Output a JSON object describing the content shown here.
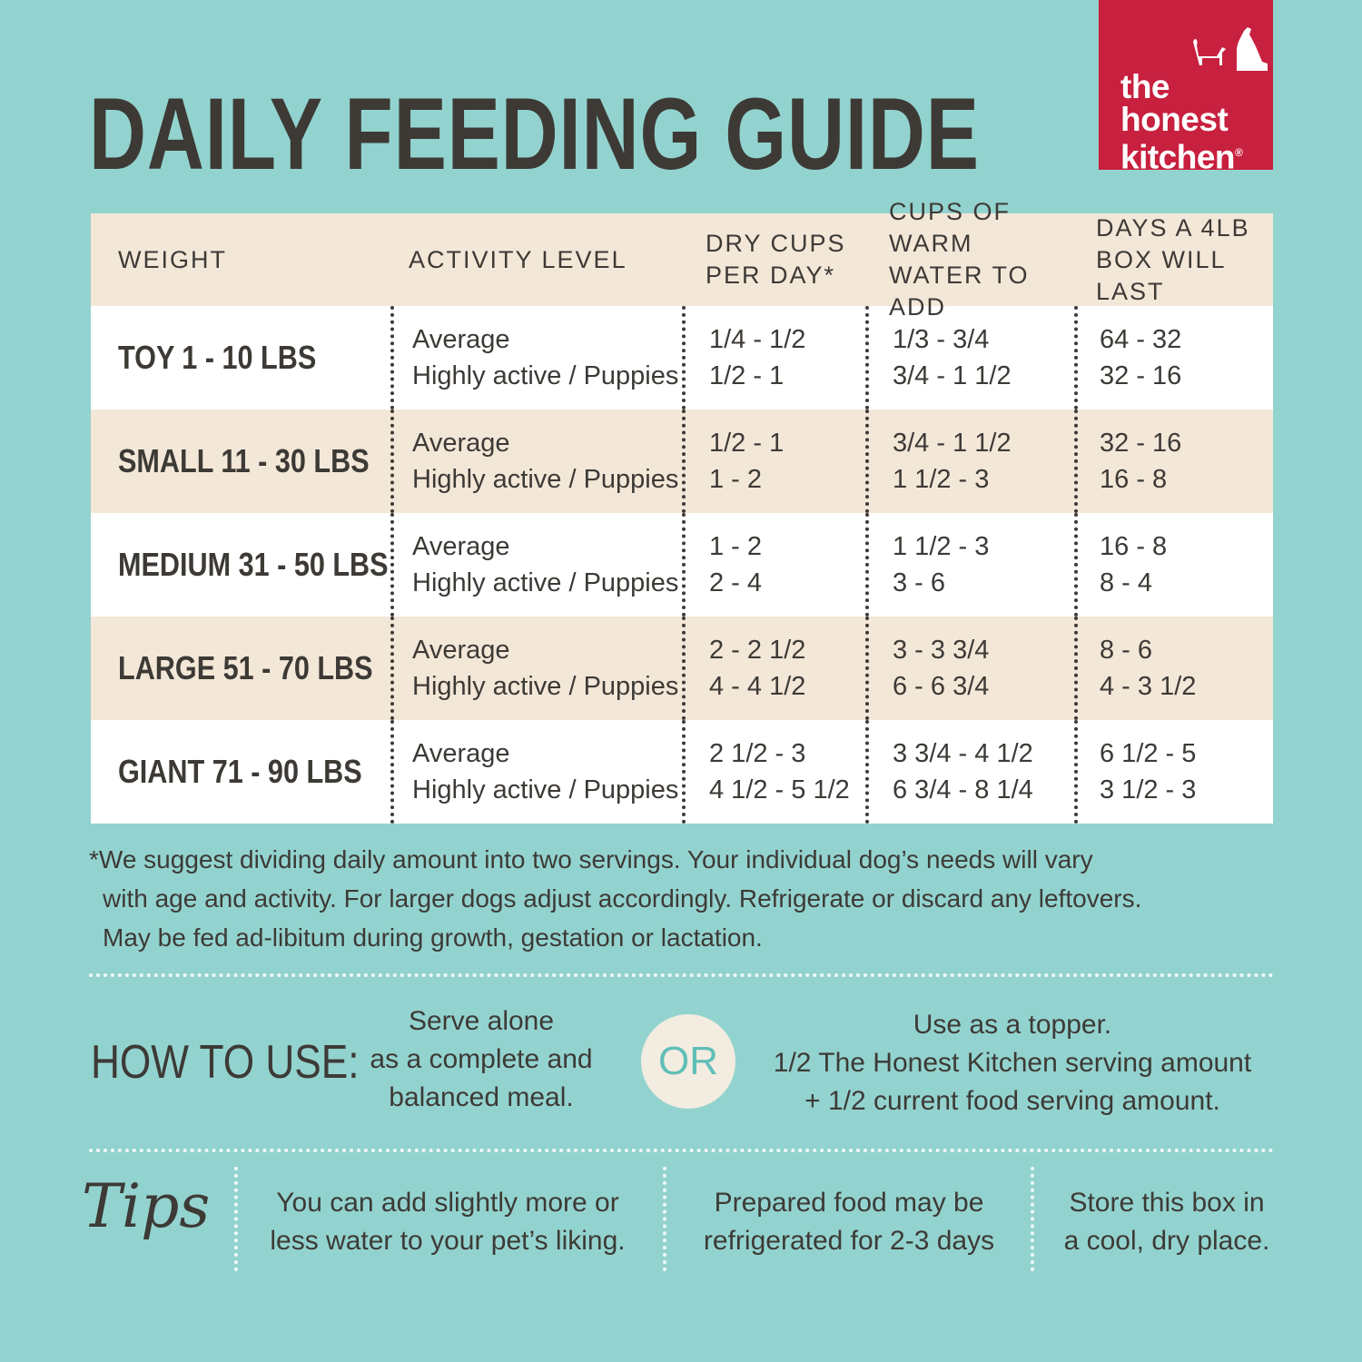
{
  "title": "DAILY FEEDING GUIDE",
  "logo": {
    "line1": "the",
    "line2": "honest",
    "line3": "kitchen",
    "mark": "®"
  },
  "colors": {
    "background": "#93d3cf",
    "cream": "#f3e7d8",
    "text": "#3d3a36",
    "brand_red": "#c8203f"
  },
  "table": {
    "headers": [
      "WEIGHT",
      "ACTIVITY LEVEL",
      "DRY CUPS PER DAY*",
      "CUPS OF WARM WATER TO ADD",
      "DAYS A 4LB BOX WILL LAST"
    ],
    "rows": [
      {
        "weight": "TOY 1 - 10 LBS",
        "activity": [
          "Average",
          "Highly active / Puppies"
        ],
        "dry": [
          "1/4 - 1/2",
          "1/2 - 1"
        ],
        "water": [
          "1/3 - 3/4",
          "3/4 - 1 1/2"
        ],
        "days": [
          "64 - 32",
          "32 - 16"
        ]
      },
      {
        "weight": "SMALL 11 - 30 LBS",
        "activity": [
          "Average",
          "Highly active / Puppies"
        ],
        "dry": [
          "1/2 - 1",
          "1 - 2"
        ],
        "water": [
          "3/4 - 1 1/2",
          "1 1/2 - 3"
        ],
        "days": [
          "32 - 16",
          "16 - 8"
        ]
      },
      {
        "weight": "MEDIUM 31 - 50 LBS",
        "activity": [
          "Average",
          "Highly active / Puppies"
        ],
        "dry": [
          "1 - 2",
          "2 - 4"
        ],
        "water": [
          "1 1/2 - 3",
          "3 - 6"
        ],
        "days": [
          "16 - 8",
          "8 - 4"
        ]
      },
      {
        "weight": "LARGE 51 - 70 LBS",
        "activity": [
          "Average",
          "Highly active / Puppies"
        ],
        "dry": [
          "2 - 2 1/2",
          "4 - 4 1/2"
        ],
        "water": [
          "3 - 3 3/4",
          "6 - 6 3/4"
        ],
        "days": [
          "8 - 6",
          "4 - 3 1/2"
        ]
      },
      {
        "weight": "GIANT 71 - 90 LBS",
        "activity": [
          "Average",
          "Highly active / Puppies"
        ],
        "dry": [
          "2 1/2 - 3",
          "4 1/2 - 5 1/2"
        ],
        "water": [
          "3 3/4 - 4 1/2",
          "6 3/4 - 8 1/4"
        ],
        "days": [
          "6 1/2 - 5",
          "3 1/2 - 3"
        ]
      }
    ]
  },
  "note": [
    "*We suggest dividing daily amount into two servings. Your individual dog’s needs will vary",
    "with age and activity. For larger dogs adjust accordingly. Refrigerate or discard any leftovers.",
    "May be fed ad-libitum during growth, gestation or lactation."
  ],
  "how_to_use": {
    "label": "HOW TO USE:",
    "option1": [
      "Serve alone",
      "as a complete and",
      "balanced meal."
    ],
    "or": "OR",
    "option2": [
      "Use as a topper.",
      "1/2 The Honest Kitchen serving amount",
      "+ 1/2 current food serving amount."
    ]
  },
  "tips": {
    "label": "Tips",
    "items": [
      [
        "You can add slightly more or",
        "less water to your pet’s liking."
      ],
      [
        "Prepared food may be",
        "refrigerated for 2-3 days"
      ],
      [
        "Store this box in",
        "a cool, dry place."
      ]
    ]
  }
}
